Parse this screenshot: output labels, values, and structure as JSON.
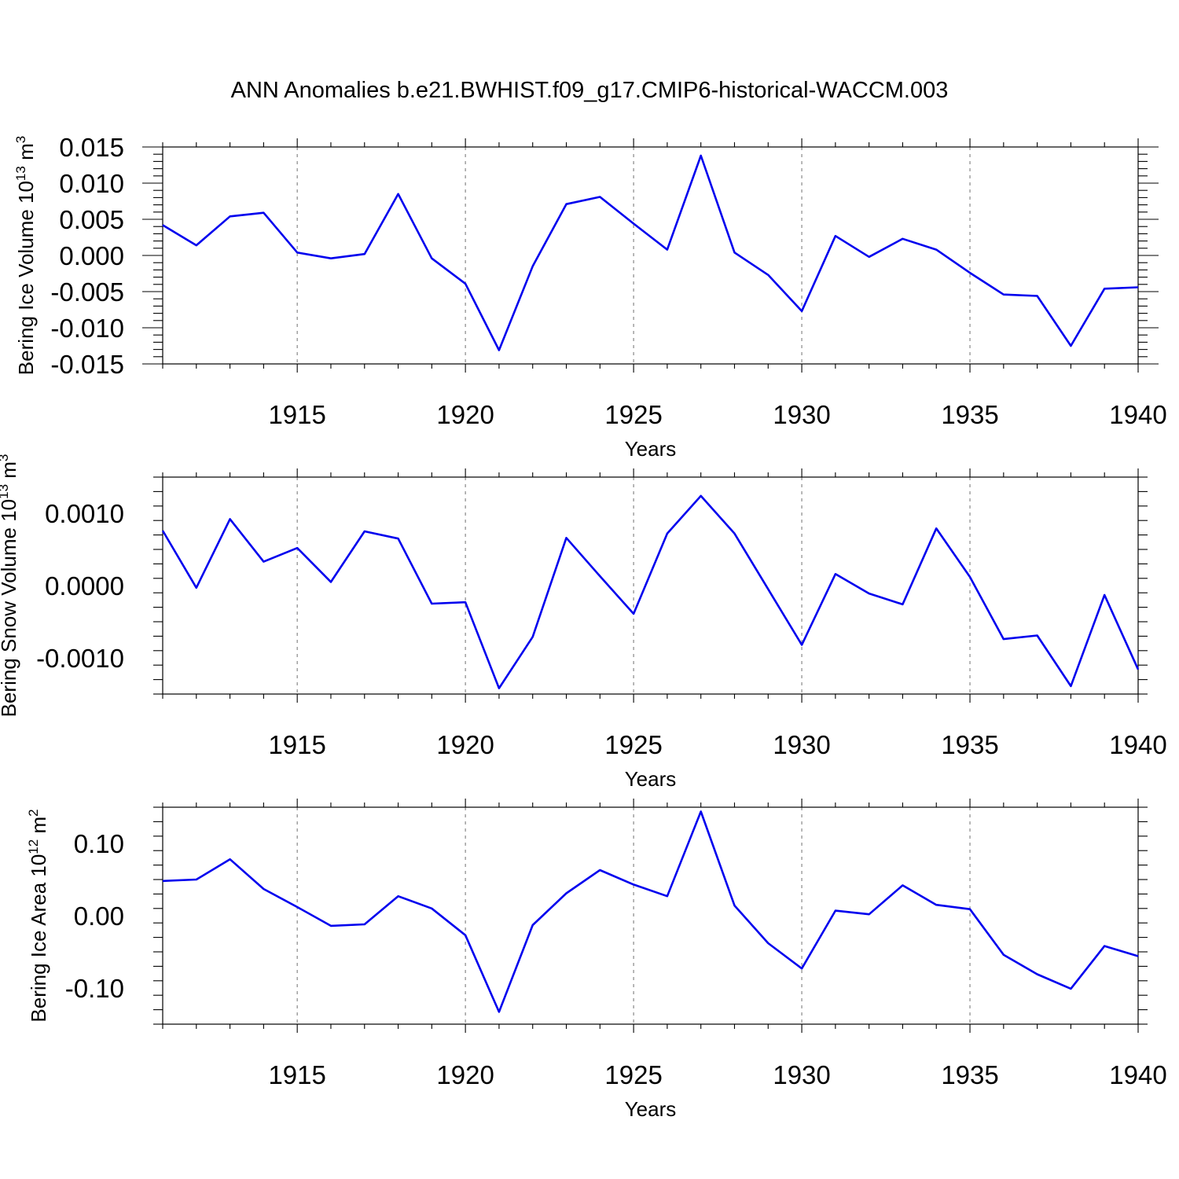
{
  "title": "ANN Anomalies b.e21.BWHIST.f09_g17.CMIP6-historical-WACCM.003",
  "colors": {
    "series": "#0000ee",
    "grid": "#888888",
    "axes": "#000000"
  },
  "chart_data": [
    {
      "type": "line",
      "ylabel": {
        "text": "Bering Ice Volume 10",
        "exp": "13",
        "unit": " m",
        "unit_exp": "3"
      },
      "xlabel": "Years",
      "xlim": [
        1911,
        1940
      ],
      "ylim": [
        -0.015,
        0.015
      ],
      "xticks": [
        "1915",
        "1920",
        "1925",
        "1930",
        "1935",
        "1940"
      ],
      "yticks": [
        {
          "v": 0.015,
          "label": "0.015"
        },
        {
          "v": 0.01,
          "label": "0.010"
        },
        {
          "v": 0.005,
          "label": "0.005"
        },
        {
          "v": 0.0,
          "label": "0.000"
        },
        {
          "v": -0.005,
          "label": "-0.005"
        },
        {
          "v": -0.01,
          "label": "-0.010"
        },
        {
          "v": -0.015,
          "label": "-0.015"
        }
      ],
      "grid_x": true,
      "x": [
        1911,
        1912,
        1913,
        1914,
        1915,
        1916,
        1917,
        1918,
        1919,
        1920,
        1921,
        1922,
        1923,
        1924,
        1925,
        1926,
        1927,
        1928,
        1929,
        1930,
        1931,
        1932,
        1933,
        1934,
        1935,
        1936,
        1937,
        1938,
        1939,
        1940
      ],
      "y": [
        0.0042,
        0.0014,
        0.0054,
        0.0059,
        0.0004,
        -0.0004,
        0.0002,
        0.0085,
        -0.0004,
        -0.0039,
        -0.0131,
        -0.0015,
        0.0071,
        0.0081,
        0.0044,
        0.0008,
        0.0138,
        0.0004,
        -0.0027,
        -0.0077,
        0.0027,
        -0.0002,
        0.0023,
        0.0008,
        -0.0024,
        -0.0054,
        -0.0056,
        -0.0125,
        -0.0046,
        -0.0044
      ]
    },
    {
      "type": "line",
      "ylabel": {
        "text": "Bering Snow Volume 10",
        "exp": "13",
        "unit": " m",
        "unit_exp": "3"
      },
      "xlabel": "Years",
      "xlim": [
        1911,
        1940
      ],
      "ylim": [
        -0.0015,
        0.0015
      ],
      "xticks": [
        "1915",
        "1920",
        "1925",
        "1930",
        "1935",
        "1940"
      ],
      "yticks": [
        {
          "v": 0.001,
          "label": "0.0010"
        },
        {
          "v": 0.0,
          "label": "0.0000"
        },
        {
          "v": -0.001,
          "label": "-0.0010"
        }
      ],
      "grid_x": true,
      "x": [
        1911,
        1912,
        1913,
        1914,
        1915,
        1916,
        1917,
        1918,
        1919,
        1920,
        1921,
        1922,
        1923,
        1924,
        1925,
        1926,
        1927,
        1928,
        1929,
        1930,
        1931,
        1932,
        1933,
        1934,
        1935,
        1936,
        1937,
        1938,
        1939,
        1940
      ],
      "y": [
        0.00076,
        -3e-05,
        0.00092,
        0.00033,
        0.00052,
        5e-05,
        0.00075,
        0.00065,
        -0.00025,
        -0.00023,
        -0.00142,
        -0.00071,
        0.00066,
        0.00013,
        -0.00039,
        0.00072,
        0.00124,
        0.00072,
        -5e-05,
        -0.00082,
        0.00016,
        -0.00011,
        -0.00026,
        0.00079,
        0.00012,
        -0.00074,
        -0.00069,
        -0.00139,
        -0.00013,
        -0.00116
      ]
    },
    {
      "type": "line",
      "ylabel": {
        "text": "Bering Ice Area 10",
        "exp": "12",
        "unit": " m",
        "unit_exp": "2"
      },
      "xlabel": "Years",
      "xlim": [
        1911,
        1940
      ],
      "ylim": [
        -0.15,
        0.15
      ],
      "xticks": [
        "1915",
        "1920",
        "1925",
        "1930",
        "1935",
        "1940"
      ],
      "yticks": [
        {
          "v": 0.1,
          "label": "0.10"
        },
        {
          "v": 0.0,
          "label": "0.00"
        },
        {
          "v": -0.1,
          "label": "-0.10"
        }
      ],
      "grid_x": true,
      "x": [
        1911,
        1912,
        1913,
        1914,
        1915,
        1916,
        1917,
        1918,
        1919,
        1920,
        1921,
        1922,
        1923,
        1924,
        1925,
        1926,
        1927,
        1928,
        1929,
        1930,
        1931,
        1932,
        1933,
        1934,
        1935,
        1936,
        1937,
        1938,
        1939,
        1940
      ],
      "y": [
        0.048,
        0.05,
        0.078,
        0.037,
        0.012,
        -0.014,
        -0.012,
        0.027,
        0.01,
        -0.027,
        -0.133,
        -0.013,
        0.031,
        0.063,
        0.043,
        0.027,
        0.144,
        0.014,
        -0.038,
        -0.073,
        0.007,
        0.002,
        0.042,
        0.015,
        0.009,
        -0.054,
        -0.081,
        -0.101,
        -0.042,
        -0.056
      ]
    }
  ]
}
